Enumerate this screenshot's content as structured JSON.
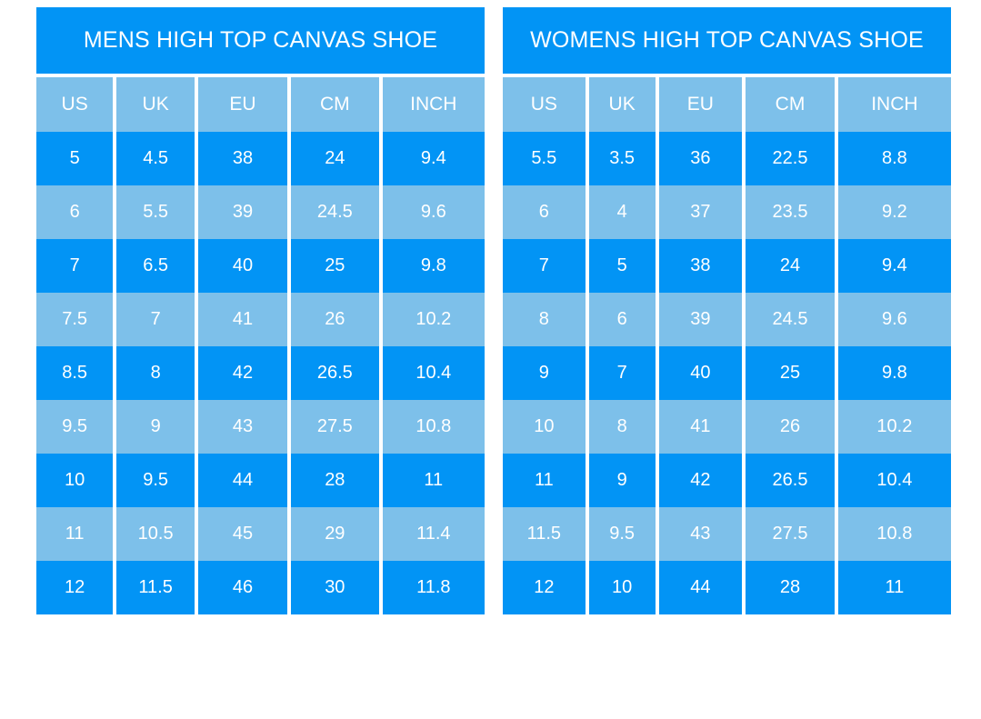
{
  "colors": {
    "primary_blue": "#0294F5",
    "light_blue": "#7DC0EA",
    "text_white": "#FFFFFF",
    "background": "#FFFFFF"
  },
  "chart_data": [
    {
      "type": "table",
      "title": "MENS HIGH TOP CANVAS SHOE",
      "columns": [
        "US",
        "UK",
        "EU",
        "CM",
        "INCH"
      ],
      "rows": [
        [
          "5",
          "4.5",
          "38",
          "24",
          "9.4"
        ],
        [
          "6",
          "5.5",
          "39",
          "24.5",
          "9.6"
        ],
        [
          "7",
          "6.5",
          "40",
          "25",
          "9.8"
        ],
        [
          "7.5",
          "7",
          "41",
          "26",
          "10.2"
        ],
        [
          "8.5",
          "8",
          "42",
          "26.5",
          "10.4"
        ],
        [
          "9.5",
          "9",
          "43",
          "27.5",
          "10.8"
        ],
        [
          "10",
          "9.5",
          "44",
          "28",
          "11"
        ],
        [
          "11",
          "10.5",
          "45",
          "29",
          "11.4"
        ],
        [
          "12",
          "11.5",
          "46",
          "30",
          "11.8"
        ]
      ]
    },
    {
      "type": "table",
      "title": "WOMENS HIGH TOP CANVAS SHOE",
      "columns": [
        "US",
        "UK",
        "EU",
        "CM",
        "INCH"
      ],
      "rows": [
        [
          "5.5",
          "3.5",
          "36",
          "22.5",
          "8.8"
        ],
        [
          "6",
          "4",
          "37",
          "23.5",
          "9.2"
        ],
        [
          "7",
          "5",
          "38",
          "24",
          "9.4"
        ],
        [
          "8",
          "6",
          "39",
          "24.5",
          "9.6"
        ],
        [
          "9",
          "7",
          "40",
          "25",
          "9.8"
        ],
        [
          "10",
          "8",
          "41",
          "26",
          "10.2"
        ],
        [
          "11",
          "9",
          "42",
          "26.5",
          "10.4"
        ],
        [
          "11.5",
          "9.5",
          "43",
          "27.5",
          "10.8"
        ],
        [
          "12",
          "10",
          "44",
          "28",
          "11"
        ]
      ]
    }
  ]
}
